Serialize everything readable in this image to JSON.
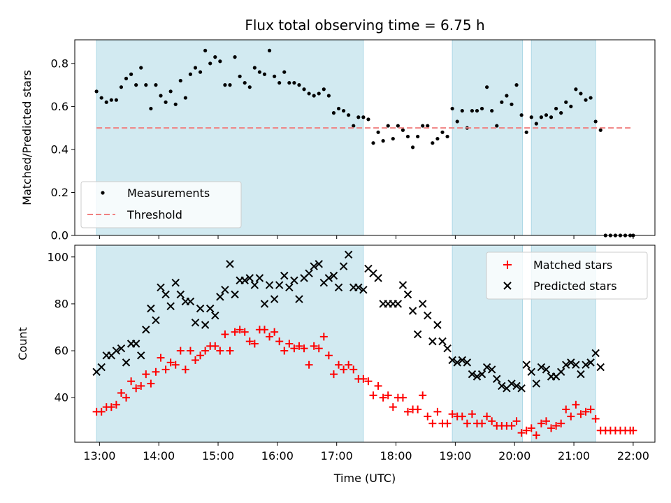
{
  "chart_data": {
    "title": "Flux total observing time = 6.75 h",
    "xlabel": "Time (UTC)",
    "x_ticks": [
      "13:00",
      "14:00",
      "15:00",
      "16:00",
      "17:00",
      "18:00",
      "19:00",
      "20:00",
      "21:00",
      "22:00"
    ],
    "xlim": [
      "12:35",
      "22:22"
    ],
    "shaded_intervals": [
      [
        "12:57",
        "17:27"
      ],
      [
        "18:57",
        "20:08"
      ],
      [
        "20:17",
        "21:22"
      ]
    ],
    "colors": {
      "shade": "#add8e6",
      "measurements": "#000000",
      "threshold": "#f08080",
      "matched": "#ff0000",
      "predicted": "#000000"
    },
    "panels": [
      {
        "type": "scatter",
        "ylabel": "Matched/Predicted stars",
        "ylim": [
          0,
          0.91
        ],
        "y_ticks": [
          0.0,
          0.2,
          0.4,
          0.6,
          0.8
        ],
        "legend_position": "lower-left",
        "series": [
          {
            "name": "Measurements",
            "marker": "dot",
            "x": [
              "12:57",
              "13:02",
              "13:07",
              "13:12",
              "13:17",
              "13:22",
              "13:27",
              "13:32",
              "13:37",
              "13:42",
              "13:47",
              "13:52",
              "13:57",
              "14:02",
              "14:07",
              "14:12",
              "14:17",
              "14:22",
              "14:27",
              "14:32",
              "14:37",
              "14:42",
              "14:47",
              "14:52",
              "14:57",
              "15:02",
              "15:07",
              "15:12",
              "15:17",
              "15:22",
              "15:27",
              "15:32",
              "15:37",
              "15:42",
              "15:47",
              "15:52",
              "15:57",
              "16:02",
              "16:07",
              "16:12",
              "16:17",
              "16:22",
              "16:27",
              "16:32",
              "16:37",
              "16:42",
              "16:47",
              "16:52",
              "16:57",
              "17:02",
              "17:07",
              "17:12",
              "17:17",
              "17:22",
              "17:27",
              "17:32",
              "17:37",
              "17:42",
              "17:47",
              "17:52",
              "17:57",
              "18:02",
              "18:07",
              "18:12",
              "18:17",
              "18:22",
              "18:27",
              "18:32",
              "18:37",
              "18:42",
              "18:47",
              "18:52",
              "18:57",
              "19:02",
              "19:07",
              "19:12",
              "19:17",
              "19:22",
              "19:27",
              "19:32",
              "19:37",
              "19:42",
              "19:47",
              "19:52",
              "19:57",
              "20:02",
              "20:07",
              "20:12",
              "20:17",
              "20:22",
              "20:27",
              "20:32",
              "20:37",
              "20:42",
              "20:47",
              "20:52",
              "20:57",
              "21:02",
              "21:07",
              "21:12",
              "21:17",
              "21:22",
              "21:27",
              "21:32",
              "21:37",
              "21:42",
              "21:47",
              "21:52",
              "21:57",
              "22:00"
            ],
            "y": [
              0.67,
              0.64,
              0.62,
              0.63,
              0.63,
              0.69,
              0.73,
              0.75,
              0.7,
              0.78,
              0.7,
              0.59,
              0.7,
              0.65,
              0.62,
              0.67,
              0.61,
              0.72,
              0.64,
              0.75,
              0.78,
              0.76,
              0.86,
              0.8,
              0.83,
              0.81,
              0.7,
              0.7,
              0.83,
              0.74,
              0.71,
              0.69,
              0.78,
              0.76,
              0.75,
              0.86,
              0.74,
              0.71,
              0.76,
              0.71,
              0.71,
              0.7,
              0.68,
              0.66,
              0.65,
              0.66,
              0.68,
              0.65,
              0.57,
              0.59,
              0.58,
              0.56,
              0.51,
              0.55,
              0.55,
              0.54,
              0.43,
              0.48,
              0.44,
              0.51,
              0.45,
              0.51,
              0.49,
              0.46,
              0.41,
              0.46,
              0.51,
              0.51,
              0.43,
              0.45,
              0.48,
              0.46,
              0.59,
              0.53,
              0.58,
              0.5,
              0.58,
              0.58,
              0.59,
              0.69,
              0.58,
              0.51,
              0.62,
              0.65,
              0.61,
              0.7,
              0.56,
              0.48,
              0.55,
              0.52,
              0.55,
              0.56,
              0.55,
              0.59,
              0.57,
              0.62,
              0.6,
              0.68,
              0.66,
              0.63,
              0.64,
              0.53,
              0.49,
              0.0,
              0.0,
              0.0,
              0.0,
              0.0,
              0.0,
              0.0
            ]
          },
          {
            "name": "Threshold",
            "marker": "dashed-line",
            "x": [
              "12:57",
              "22:00"
            ],
            "y": [
              0.5,
              0.5
            ]
          }
        ]
      },
      {
        "type": "scatter",
        "ylabel": "Count",
        "ylim": [
          21,
          105
        ],
        "y_ticks": [
          40,
          60,
          80,
          100
        ],
        "legend_position": "upper-right",
        "series": [
          {
            "name": "Matched stars",
            "marker": "plus",
            "x": [
              "12:57",
              "13:02",
              "13:07",
              "13:12",
              "13:17",
              "13:22",
              "13:27",
              "13:32",
              "13:37",
              "13:42",
              "13:47",
              "13:52",
              "13:57",
              "14:02",
              "14:07",
              "14:12",
              "14:17",
              "14:22",
              "14:27",
              "14:32",
              "14:37",
              "14:42",
              "14:47",
              "14:52",
              "14:57",
              "15:02",
              "15:07",
              "15:12",
              "15:17",
              "15:22",
              "15:27",
              "15:32",
              "15:37",
              "15:42",
              "15:47",
              "15:52",
              "15:57",
              "16:02",
              "16:07",
              "16:12",
              "16:17",
              "16:22",
              "16:27",
              "16:32",
              "16:37",
              "16:42",
              "16:47",
              "16:52",
              "16:57",
              "17:02",
              "17:07",
              "17:12",
              "17:17",
              "17:22",
              "17:27",
              "17:32",
              "17:37",
              "17:42",
              "17:47",
              "17:52",
              "17:57",
              "18:02",
              "18:07",
              "18:12",
              "18:17",
              "18:22",
              "18:27",
              "18:32",
              "18:37",
              "18:42",
              "18:47",
              "18:52",
              "18:57",
              "19:02",
              "19:07",
              "19:12",
              "19:17",
              "19:22",
              "19:27",
              "19:32",
              "19:37",
              "19:42",
              "19:47",
              "19:52",
              "19:57",
              "20:02",
              "20:07",
              "20:12",
              "20:17",
              "20:22",
              "20:27",
              "20:32",
              "20:37",
              "20:42",
              "20:47",
              "20:52",
              "20:57",
              "21:02",
              "21:07",
              "21:12",
              "21:17",
              "21:22",
              "21:27",
              "21:32",
              "21:37",
              "21:42",
              "21:47",
              "21:52",
              "21:57",
              "22:00"
            ],
            "y": [
              34,
              34,
              36,
              36,
              37,
              42,
              40,
              47,
              44,
              45,
              50,
              46,
              51,
              57,
              52,
              55,
              54,
              60,
              52,
              60,
              56,
              58,
              60,
              62,
              62,
              60,
              67,
              60,
              68,
              69,
              68,
              64,
              63,
              69,
              69,
              66,
              68,
              64,
              60,
              63,
              61,
              62,
              61,
              54,
              62,
              61,
              66,
              58,
              50,
              54,
              52,
              54,
              52,
              48,
              48,
              47,
              41,
              45,
              40,
              41,
              36,
              40,
              40,
              34,
              35,
              35,
              41,
              32,
              29,
              34,
              29,
              29,
              33,
              32,
              32,
              29,
              33,
              29,
              29,
              32,
              30,
              28,
              28,
              28,
              28,
              30,
              25,
              26,
              27,
              24,
              29,
              30,
              27,
              28,
              29,
              35,
              32,
              37,
              33,
              34,
              35,
              31,
              26,
              26,
              26,
              26,
              26,
              26,
              26,
              26
            ]
          },
          {
            "name": "Predicted stars",
            "marker": "x",
            "x": [
              "12:57",
              "13:02",
              "13:07",
              "13:12",
              "13:17",
              "13:22",
              "13:27",
              "13:32",
              "13:37",
              "13:42",
              "13:47",
              "13:52",
              "13:57",
              "14:02",
              "14:07",
              "14:12",
              "14:17",
              "14:22",
              "14:27",
              "14:32",
              "14:37",
              "14:42",
              "14:47",
              "14:52",
              "14:57",
              "15:02",
              "15:07",
              "15:12",
              "15:17",
              "15:22",
              "15:27",
              "15:32",
              "15:37",
              "15:42",
              "15:47",
              "15:52",
              "15:57",
              "16:02",
              "16:07",
              "16:12",
              "16:17",
              "16:22",
              "16:27",
              "16:32",
              "16:37",
              "16:42",
              "16:47",
              "16:52",
              "16:57",
              "17:02",
              "17:07",
              "17:12",
              "17:17",
              "17:22",
              "17:27",
              "17:32",
              "17:37",
              "17:42",
              "17:47",
              "17:52",
              "17:57",
              "18:02",
              "18:07",
              "18:12",
              "18:17",
              "18:22",
              "18:27",
              "18:32",
              "18:37",
              "18:42",
              "18:47",
              "18:52",
              "18:57",
              "19:02",
              "19:07",
              "19:12",
              "19:17",
              "19:22",
              "19:27",
              "19:32",
              "19:37",
              "19:42",
              "19:47",
              "19:52",
              "19:57",
              "20:02",
              "20:07",
              "20:12",
              "20:17",
              "20:22",
              "20:27",
              "20:32",
              "20:37",
              "20:42",
              "20:47",
              "20:52",
              "20:57",
              "21:02",
              "21:07",
              "21:12",
              "21:17",
              "21:22",
              "21:27"
            ],
            "y": [
              51,
              53,
              58,
              58,
              60,
              61,
              55,
              63,
              63,
              58,
              69,
              78,
              73,
              87,
              84,
              79,
              89,
              84,
              81,
              81,
              72,
              78,
              71,
              78,
              75,
              83,
              86,
              97,
              84,
              90,
              90,
              91,
              88,
              91,
              80,
              88,
              82,
              88,
              92,
              87,
              90,
              82,
              91,
              93,
              96,
              97,
              89,
              91,
              92,
              87,
              96,
              101,
              87,
              87,
              86,
              95,
              93,
              91,
              80,
              80,
              80,
              80,
              88,
              84,
              77,
              67,
              80,
              75,
              64,
              71,
              64,
              61,
              56,
              55,
              56,
              55,
              50,
              49,
              50,
              53,
              52,
              48,
              45,
              44,
              46,
              45,
              44,
              54,
              51,
              46,
              53,
              52,
              49,
              49,
              51,
              54,
              55,
              54,
              50,
              54,
              55,
              59,
              53
            ]
          }
        ]
      }
    ]
  }
}
